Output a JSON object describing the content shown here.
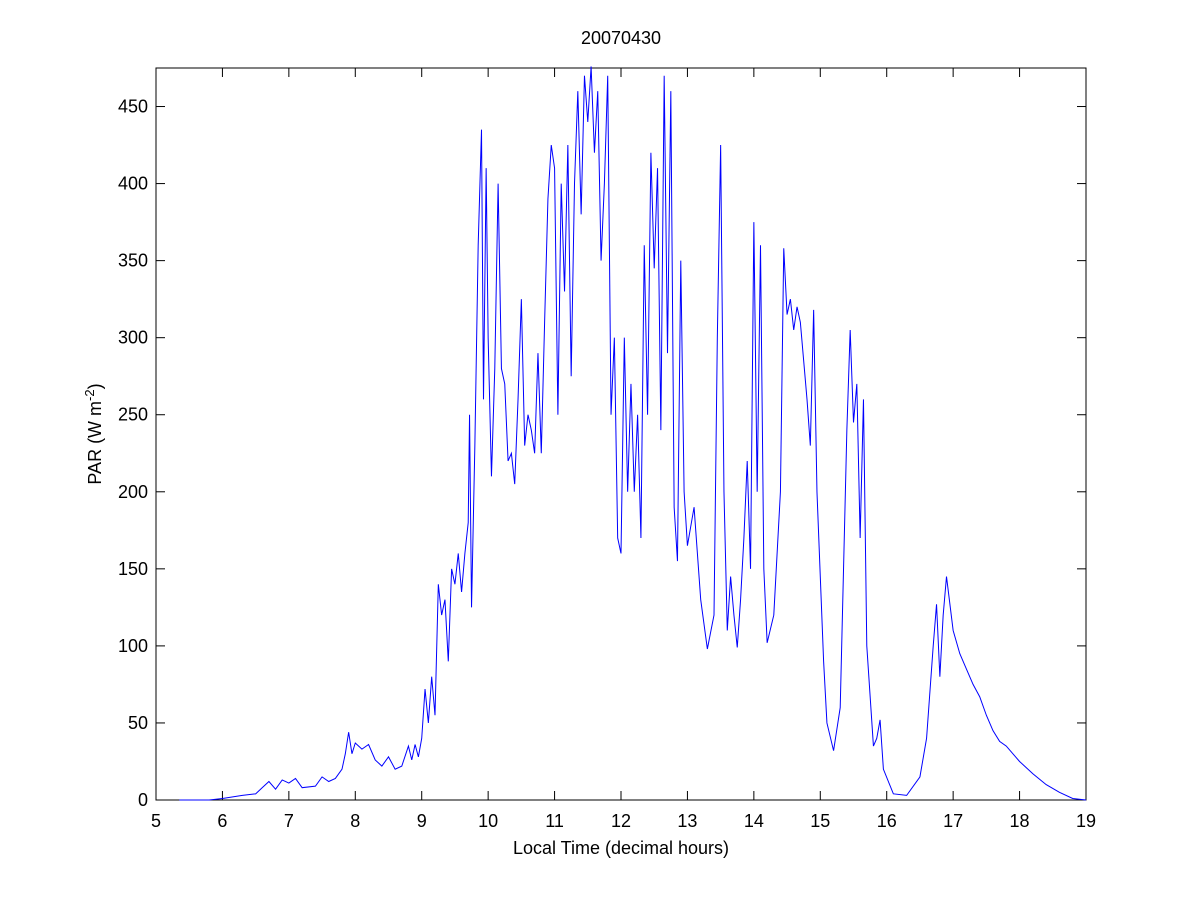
{
  "chart_data": {
    "type": "line",
    "title": "20070430",
    "x_label": "Local Time (decimal hours)",
    "y_label": {
      "text": "PAR (W m",
      "superscript": "-2",
      "suffix": ")"
    },
    "xlim": [
      5,
      19
    ],
    "xticks": [
      5,
      6,
      7,
      8,
      9,
      10,
      11,
      12,
      13,
      14,
      15,
      16,
      17,
      18,
      19
    ],
    "ylim": [
      0,
      475
    ],
    "yticks": [
      0,
      50,
      100,
      150,
      200,
      250,
      300,
      350,
      400,
      450
    ],
    "series": [
      {
        "color": "#0000ff",
        "x": [
          5.35,
          5.8,
          6.0,
          6.3,
          6.5,
          6.6,
          6.7,
          6.8,
          6.9,
          7.0,
          7.1,
          7.2,
          7.4,
          7.5,
          7.6,
          7.7,
          7.8,
          7.85,
          7.9,
          7.95,
          8.0,
          8.1,
          8.2,
          8.3,
          8.4,
          8.5,
          8.6,
          8.7,
          8.8,
          8.85,
          8.9,
          8.95,
          9.0,
          9.05,
          9.1,
          9.15,
          9.2,
          9.25,
          9.3,
          9.35,
          9.4,
          9.45,
          9.5,
          9.55,
          9.6,
          9.65,
          9.7,
          9.72,
          9.75,
          9.8,
          9.85,
          9.9,
          9.93,
          9.97,
          10.0,
          10.05,
          10.1,
          10.15,
          10.2,
          10.25,
          10.3,
          10.35,
          10.4,
          10.45,
          10.5,
          10.55,
          10.6,
          10.65,
          10.7,
          10.75,
          10.8,
          10.85,
          10.9,
          10.95,
          11.0,
          11.05,
          11.1,
          11.15,
          11.2,
          11.25,
          11.3,
          11.35,
          11.4,
          11.45,
          11.5,
          11.55,
          11.6,
          11.65,
          11.7,
          11.75,
          11.8,
          11.85,
          11.9,
          11.95,
          12.0,
          12.05,
          12.1,
          12.15,
          12.2,
          12.25,
          12.3,
          12.35,
          12.4,
          12.45,
          12.5,
          12.55,
          12.6,
          12.65,
          12.7,
          12.75,
          12.8,
          12.85,
          12.9,
          12.95,
          13.0,
          13.1,
          13.2,
          13.3,
          13.4,
          13.45,
          13.5,
          13.55,
          13.6,
          13.65,
          13.7,
          13.75,
          13.8,
          13.85,
          13.9,
          13.95,
          14.0,
          14.05,
          14.1,
          14.15,
          14.2,
          14.3,
          14.4,
          14.45,
          14.5,
          14.55,
          14.6,
          14.65,
          14.7,
          14.8,
          14.85,
          14.9,
          14.95,
          15.0,
          15.05,
          15.1,
          15.2,
          15.3,
          15.4,
          15.45,
          15.5,
          15.55,
          15.6,
          15.65,
          15.7,
          15.8,
          15.85,
          15.9,
          15.95,
          16.1,
          16.3,
          16.5,
          16.6,
          16.7,
          16.75,
          16.8,
          16.85,
          16.9,
          17.0,
          17.1,
          17.2,
          17.3,
          17.4,
          17.5,
          17.6,
          17.7,
          17.8,
          17.9,
          18.0,
          18.2,
          18.4,
          18.6,
          18.8,
          19.0
        ],
        "values": [
          0,
          0,
          1,
          3,
          4,
          8,
          12,
          7,
          13,
          11,
          14,
          8,
          9,
          15,
          12,
          14,
          20,
          30,
          44,
          30,
          37,
          33,
          36,
          26,
          22,
          28,
          20,
          22,
          35,
          26,
          36,
          28,
          40,
          72,
          50,
          80,
          55,
          140,
          120,
          130,
          90,
          150,
          140,
          160,
          135,
          160,
          180,
          250,
          125,
          230,
          360,
          435,
          260,
          410,
          300,
          210,
          280,
          400,
          280,
          270,
          220,
          225,
          205,
          260,
          325,
          230,
          250,
          240,
          225,
          290,
          225,
          310,
          390,
          425,
          410,
          250,
          400,
          330,
          425,
          275,
          400,
          460,
          380,
          470,
          440,
          476,
          420,
          460,
          350,
          400,
          470,
          250,
          300,
          170,
          160,
          300,
          200,
          270,
          200,
          250,
          170,
          360,
          250,
          420,
          345,
          410,
          240,
          470,
          290,
          460,
          190,
          155,
          350,
          200,
          165,
          190,
          130,
          98,
          120,
          300,
          425,
          200,
          110,
          145,
          120,
          99,
          130,
          170,
          220,
          150,
          375,
          200,
          360,
          150,
          102,
          120,
          200,
          358,
          315,
          325,
          305,
          320,
          310,
          260,
          230,
          318,
          200,
          145,
          90,
          50,
          32,
          60,
          240,
          305,
          245,
          270,
          170,
          260,
          100,
          35,
          40,
          52,
          20,
          4,
          3,
          15,
          40,
          100,
          127,
          80,
          120,
          145,
          110,
          95,
          85,
          75,
          67,
          55,
          45,
          38,
          35,
          30,
          25,
          17,
          10,
          5,
          1,
          0
        ]
      }
    ]
  }
}
